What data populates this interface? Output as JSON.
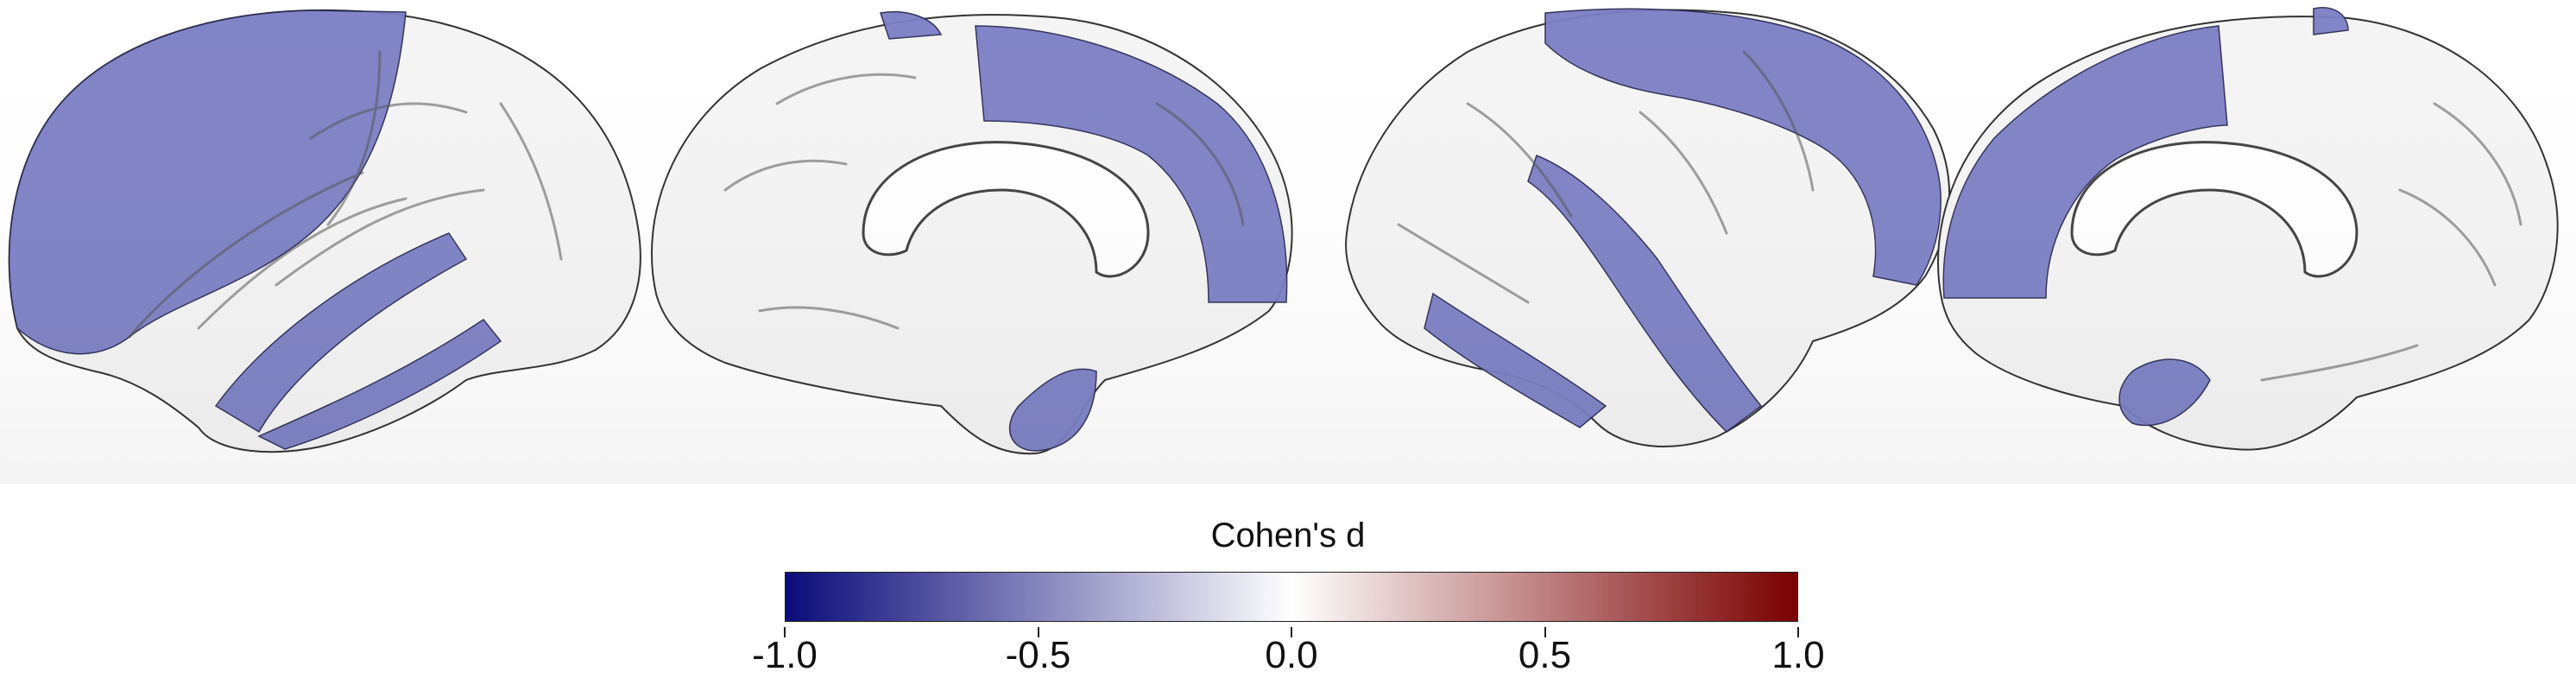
{
  "colorbar": {
    "title": "Cohen's d",
    "min": -1.0,
    "max": 1.0,
    "ticks": [
      {
        "value": -1.0,
        "label": "-1.0"
      },
      {
        "value": -0.5,
        "label": "-0.5"
      },
      {
        "value": 0.0,
        "label": "0.0"
      },
      {
        "value": 0.5,
        "label": "0.5"
      },
      {
        "value": 1.0,
        "label": "1.0"
      }
    ],
    "colors": {
      "low": "#0b0b7a",
      "mid": "#ffffff",
      "high": "#7a0000"
    }
  },
  "region_color": "#7b7fc4",
  "surface_color": "#f4f4f4",
  "views": [
    {
      "name": "left-lateral-view"
    },
    {
      "name": "left-medial-view"
    },
    {
      "name": "right-lateral-view"
    },
    {
      "name": "right-medial-view"
    }
  ]
}
